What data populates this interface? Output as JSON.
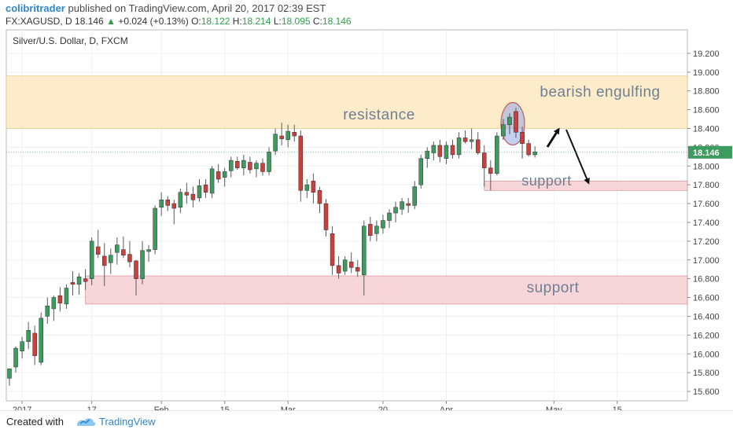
{
  "header": {
    "author": "colibritrader",
    "published_text": "published on TradingView.com, April 20, 2017 02:39 EST",
    "symbol": "FX:XAGUSD, D",
    "last": "18.146",
    "change": "+0.024 (+0.13%)",
    "change_arrow": "▲",
    "o_label": "O:",
    "o_value": "18.122",
    "h_label": "H:",
    "h_value": "18.214",
    "l_label": "L:",
    "l_value": "18.095",
    "c_label": "C:",
    "c_value": "18.146"
  },
  "footer": {
    "created_with": "Created with",
    "brand": "TradingView"
  },
  "chart_data": {
    "type": "candlestick",
    "title": "Silver/U.S. Dollar, D, FXCM",
    "ylim": [
      15.5,
      19.45
    ],
    "y_ticks": [
      "15.600",
      "15.800",
      "16.000",
      "16.200",
      "16.400",
      "16.600",
      "16.800",
      "17.000",
      "17.200",
      "17.400",
      "17.600",
      "17.800",
      "18.000",
      "18.200",
      "18.400",
      "18.600",
      "18.800",
      "19.000",
      "19.200"
    ],
    "x_ticks": [
      {
        "label": "2017",
        "index": 2
      },
      {
        "label": "17",
        "index": 13
      },
      {
        "label": "Feb",
        "index": 24
      },
      {
        "label": "15",
        "index": 34
      },
      {
        "label": "Mar",
        "index": 44
      },
      {
        "label": "20",
        "index": 59
      },
      {
        "label": "Apr",
        "index": 69
      },
      {
        "label": "May",
        "index": 86
      },
      {
        "label": "15",
        "index": 96
      }
    ],
    "last_price": "18.146",
    "candles": [
      {
        "o": 15.74,
        "h": 15.84,
        "l": 15.66,
        "c": 15.84
      },
      {
        "o": 15.86,
        "h": 16.08,
        "l": 15.8,
        "c": 16.06
      },
      {
        "o": 16.03,
        "h": 16.18,
        "l": 15.95,
        "c": 16.13
      },
      {
        "o": 16.13,
        "h": 16.34,
        "l": 16.05,
        "c": 16.25
      },
      {
        "o": 16.22,
        "h": 16.3,
        "l": 15.88,
        "c": 15.98
      },
      {
        "o": 15.91,
        "h": 16.44,
        "l": 15.88,
        "c": 16.38
      },
      {
        "o": 16.4,
        "h": 16.6,
        "l": 16.32,
        "c": 16.51
      },
      {
        "o": 16.48,
        "h": 16.62,
        "l": 16.35,
        "c": 16.6
      },
      {
        "o": 16.62,
        "h": 16.71,
        "l": 16.45,
        "c": 16.54
      },
      {
        "o": 16.53,
        "h": 16.74,
        "l": 16.48,
        "c": 16.7
      },
      {
        "o": 16.76,
        "h": 16.88,
        "l": 16.62,
        "c": 16.74
      },
      {
        "o": 16.74,
        "h": 16.86,
        "l": 16.63,
        "c": 16.82
      },
      {
        "o": 16.8,
        "h": 16.9,
        "l": 16.68,
        "c": 16.77
      },
      {
        "o": 16.8,
        "h": 17.24,
        "l": 16.73,
        "c": 17.2
      },
      {
        "o": 17.14,
        "h": 17.32,
        "l": 17.02,
        "c": 17.06
      },
      {
        "o": 17.04,
        "h": 17.18,
        "l": 16.72,
        "c": 16.94
      },
      {
        "o": 16.97,
        "h": 17.12,
        "l": 16.85,
        "c": 17.05
      },
      {
        "o": 17.08,
        "h": 17.24,
        "l": 16.95,
        "c": 17.16
      },
      {
        "o": 17.11,
        "h": 17.25,
        "l": 17.02,
        "c": 17.05
      },
      {
        "o": 17.06,
        "h": 17.2,
        "l": 16.92,
        "c": 16.98
      },
      {
        "o": 16.99,
        "h": 17.0,
        "l": 16.62,
        "c": 16.8
      },
      {
        "o": 16.8,
        "h": 17.2,
        "l": 16.74,
        "c": 17.1
      },
      {
        "o": 17.09,
        "h": 17.16,
        "l": 16.98,
        "c": 17.11
      },
      {
        "o": 17.11,
        "h": 17.58,
        "l": 17.06,
        "c": 17.55
      },
      {
        "o": 17.56,
        "h": 17.72,
        "l": 17.47,
        "c": 17.64
      },
      {
        "o": 17.64,
        "h": 17.68,
        "l": 17.52,
        "c": 17.58
      },
      {
        "o": 17.6,
        "h": 17.64,
        "l": 17.38,
        "c": 17.55
      },
      {
        "o": 17.56,
        "h": 17.76,
        "l": 17.5,
        "c": 17.72
      },
      {
        "o": 17.72,
        "h": 17.82,
        "l": 17.6,
        "c": 17.69
      },
      {
        "o": 17.7,
        "h": 17.78,
        "l": 17.56,
        "c": 17.64
      },
      {
        "o": 17.66,
        "h": 17.86,
        "l": 17.62,
        "c": 17.79
      },
      {
        "o": 17.8,
        "h": 17.86,
        "l": 17.66,
        "c": 17.72
      },
      {
        "o": 17.71,
        "h": 18.0,
        "l": 17.66,
        "c": 17.97
      },
      {
        "o": 17.94,
        "h": 18.02,
        "l": 17.82,
        "c": 17.86
      },
      {
        "o": 17.88,
        "h": 17.98,
        "l": 17.78,
        "c": 17.94
      },
      {
        "o": 17.95,
        "h": 18.1,
        "l": 17.88,
        "c": 18.06
      },
      {
        "o": 18.05,
        "h": 18.1,
        "l": 17.96,
        "c": 17.98
      },
      {
        "o": 17.98,
        "h": 18.12,
        "l": 17.9,
        "c": 18.06
      },
      {
        "o": 18.04,
        "h": 18.1,
        "l": 17.92,
        "c": 17.96
      },
      {
        "o": 17.97,
        "h": 18.06,
        "l": 17.88,
        "c": 18.03
      },
      {
        "o": 18.03,
        "h": 18.08,
        "l": 17.9,
        "c": 17.94
      },
      {
        "o": 17.94,
        "h": 18.2,
        "l": 17.9,
        "c": 18.15
      },
      {
        "o": 18.16,
        "h": 18.4,
        "l": 18.12,
        "c": 18.34
      },
      {
        "o": 18.32,
        "h": 18.46,
        "l": 18.22,
        "c": 18.29
      },
      {
        "o": 18.28,
        "h": 18.44,
        "l": 18.2,
        "c": 18.37
      },
      {
        "o": 18.36,
        "h": 18.44,
        "l": 18.26,
        "c": 18.32
      },
      {
        "o": 18.32,
        "h": 18.38,
        "l": 17.62,
        "c": 17.74
      },
      {
        "o": 17.74,
        "h": 17.86,
        "l": 17.66,
        "c": 17.8
      },
      {
        "o": 17.84,
        "h": 17.92,
        "l": 17.6,
        "c": 17.72
      },
      {
        "o": 17.74,
        "h": 17.78,
        "l": 17.5,
        "c": 17.6
      },
      {
        "o": 17.6,
        "h": 17.65,
        "l": 17.25,
        "c": 17.32
      },
      {
        "o": 17.28,
        "h": 17.36,
        "l": 16.84,
        "c": 16.94
      },
      {
        "o": 16.94,
        "h": 17.04,
        "l": 16.8,
        "c": 16.86
      },
      {
        "o": 16.88,
        "h": 17.04,
        "l": 16.84,
        "c": 17.0
      },
      {
        "o": 16.98,
        "h": 17.08,
        "l": 16.86,
        "c": 16.92
      },
      {
        "o": 16.92,
        "h": 17.0,
        "l": 16.82,
        "c": 16.88
      },
      {
        "o": 16.84,
        "h": 17.42,
        "l": 16.62,
        "c": 17.36
      },
      {
        "o": 17.38,
        "h": 17.46,
        "l": 17.2,
        "c": 17.26
      },
      {
        "o": 17.28,
        "h": 17.42,
        "l": 17.2,
        "c": 17.36
      },
      {
        "o": 17.34,
        "h": 17.48,
        "l": 17.28,
        "c": 17.42
      },
      {
        "o": 17.42,
        "h": 17.54,
        "l": 17.34,
        "c": 17.5
      },
      {
        "o": 17.5,
        "h": 17.62,
        "l": 17.4,
        "c": 17.56
      },
      {
        "o": 17.54,
        "h": 17.66,
        "l": 17.48,
        "c": 17.62
      },
      {
        "o": 17.6,
        "h": 17.66,
        "l": 17.5,
        "c": 17.58
      },
      {
        "o": 17.58,
        "h": 17.84,
        "l": 17.54,
        "c": 17.78
      },
      {
        "o": 17.8,
        "h": 18.12,
        "l": 17.76,
        "c": 18.08
      },
      {
        "o": 18.08,
        "h": 18.2,
        "l": 17.98,
        "c": 18.16
      },
      {
        "o": 18.14,
        "h": 18.26,
        "l": 18.06,
        "c": 18.22
      },
      {
        "o": 18.22,
        "h": 18.28,
        "l": 18.04,
        "c": 18.1
      },
      {
        "o": 18.08,
        "h": 18.26,
        "l": 18.02,
        "c": 18.22
      },
      {
        "o": 18.22,
        "h": 18.28,
        "l": 18.08,
        "c": 18.12
      },
      {
        "o": 18.12,
        "h": 18.36,
        "l": 18.08,
        "c": 18.3
      },
      {
        "o": 18.3,
        "h": 18.38,
        "l": 18.24,
        "c": 18.26
      },
      {
        "o": 18.26,
        "h": 18.4,
        "l": 18.18,
        "c": 18.28
      },
      {
        "o": 18.28,
        "h": 18.36,
        "l": 18.12,
        "c": 18.14
      },
      {
        "o": 18.14,
        "h": 18.22,
        "l": 17.78,
        "c": 17.98
      },
      {
        "o": 17.98,
        "h": 18.06,
        "l": 17.74,
        "c": 17.92
      },
      {
        "o": 17.92,
        "h": 18.36,
        "l": 17.9,
        "c": 18.32
      },
      {
        "o": 18.32,
        "h": 18.5,
        "l": 18.28,
        "c": 18.44
      },
      {
        "o": 18.44,
        "h": 18.56,
        "l": 18.34,
        "c": 18.52
      },
      {
        "o": 18.58,
        "h": 18.62,
        "l": 18.3,
        "c": 18.36
      },
      {
        "o": 18.36,
        "h": 18.42,
        "l": 18.08,
        "c": 18.24
      },
      {
        "o": 18.24,
        "h": 18.28,
        "l": 18.1,
        "c": 18.12
      },
      {
        "o": 18.12,
        "h": 18.21,
        "l": 18.09,
        "c": 18.15
      }
    ],
    "zones": [
      {
        "label": "resistance",
        "from": 18.4,
        "to": 18.96,
        "start_index": -1,
        "color": "#fde9c0"
      },
      {
        "label": "support",
        "from": 16.53,
        "to": 16.83,
        "start_index": 12,
        "color": "#f6cfd3"
      },
      {
        "label": "support",
        "from": 17.74,
        "to": 17.84,
        "start_index": 75,
        "color": "#f6cfd3"
      }
    ],
    "annotations": [
      {
        "text": "bearish engulfing"
      }
    ],
    "colors": {
      "up": "#3e9b5f",
      "down": "#c9403d",
      "wick": "#5a5a5a"
    }
  }
}
